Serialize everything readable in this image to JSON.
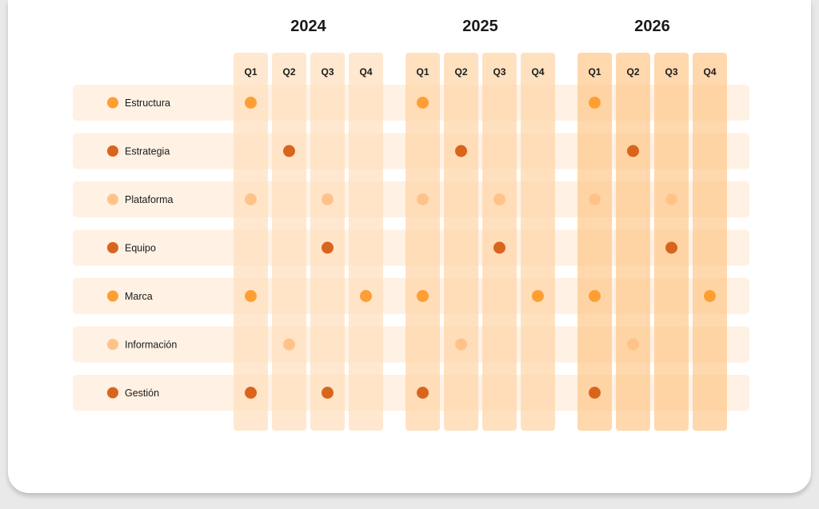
{
  "chart_data": {
    "type": "timeline-matrix",
    "years": [
      {
        "label": "2024",
        "quarters": [
          "Q1",
          "Q2",
          "Q3",
          "Q4"
        ]
      },
      {
        "label": "2025",
        "quarters": [
          "Q1",
          "Q2",
          "Q3",
          "Q4"
        ]
      },
      {
        "label": "2026",
        "quarters": [
          "Q1",
          "Q2",
          "Q3",
          "Q4"
        ]
      }
    ],
    "colors": {
      "row_band": "#fff1e3",
      "year_columns": [
        "#ffdfbd",
        "#ffd5a8",
        "#ffc98e"
      ],
      "dot_light": "#ffc38a",
      "dot_medium": "#ff9e33",
      "dot_dark": "#d9651c"
    },
    "rows": [
      {
        "label": "Estructura",
        "dot": "dot_medium",
        "active": [
          0,
          4,
          8
        ]
      },
      {
        "label": "Estrategia",
        "dot": "dot_dark",
        "active": [
          1,
          5,
          9
        ]
      },
      {
        "label": "Plataforma",
        "dot": "dot_light",
        "active": [
          0,
          2,
          4,
          6,
          8,
          10
        ]
      },
      {
        "label": "Equipo",
        "dot": "dot_dark",
        "active": [
          2,
          6,
          10
        ]
      },
      {
        "label": "Marca",
        "dot": "dot_medium",
        "active": [
          0,
          3,
          4,
          7,
          8,
          11
        ]
      },
      {
        "label": "Información",
        "dot": "dot_light",
        "active": [
          1,
          5,
          9
        ]
      },
      {
        "label": "Gestión",
        "dot": "dot_dark",
        "active": [
          0,
          2,
          4,
          8
        ]
      }
    ]
  }
}
